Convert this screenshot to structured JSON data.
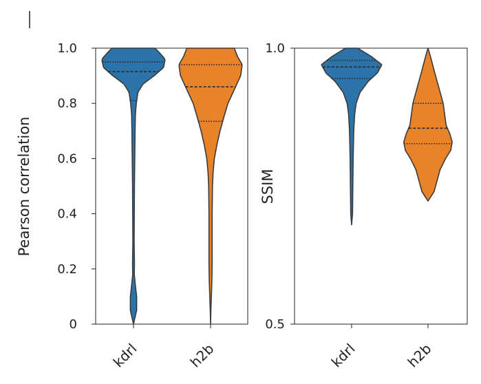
{
  "chart_data": [
    {
      "type": "violin",
      "ylabel": "Pearson correlation",
      "ylim": [
        0,
        1.0
      ],
      "yticks": [
        "1.0",
        "0.8",
        "0.6",
        "0.4",
        "0.2",
        "0"
      ],
      "ytick_values": [
        1.0,
        0.8,
        0.6,
        0.4,
        0.2,
        0
      ],
      "categories": [
        "kdrl",
        "h2b"
      ],
      "series": [
        {
          "color": "#2b73a8",
          "min": 0.0,
          "max": 1.0,
          "quartiles": [
            0.81,
            0.915,
            0.95
          ],
          "density_y": [
            0.0,
            0.05,
            0.1,
            0.14,
            0.18,
            0.22,
            0.3,
            0.5,
            0.7,
            0.76,
            0.8,
            0.84,
            0.87,
            0.9,
            0.93,
            0.96,
            0.98,
            1.0
          ],
          "density_w": [
            0.0,
            0.1,
            0.1,
            0.06,
            0.025,
            0.03,
            0.02,
            0.03,
            0.05,
            0.06,
            0.09,
            0.14,
            0.3,
            0.65,
            0.95,
            1.0,
            0.85,
            0.68
          ]
        },
        {
          "color": "#e8832a",
          "min": 0.0,
          "max": 1.0,
          "quartiles": [
            0.735,
            0.86,
            0.94
          ],
          "density_y": [
            0.0,
            0.05,
            0.15,
            0.22,
            0.3,
            0.4,
            0.5,
            0.55,
            0.6,
            0.65,
            0.7,
            0.75,
            0.8,
            0.85,
            0.9,
            0.94,
            0.97,
            1.0
          ],
          "density_w": [
            0.0,
            0.01,
            0.04,
            0.05,
            0.05,
            0.05,
            0.06,
            0.08,
            0.12,
            0.2,
            0.3,
            0.42,
            0.55,
            0.75,
            0.95,
            1.0,
            0.85,
            0.75
          ]
        }
      ]
    },
    {
      "type": "violin",
      "ylabel": "SSIM",
      "ylim": [
        0.5,
        1.0
      ],
      "yticks": [
        "1.0",
        "0.5"
      ],
      "ytick_values": [
        1.0,
        0.5
      ],
      "categories": [
        "kdrl",
        "h2b"
      ],
      "series": [
        {
          "color": "#2b73a8",
          "min": 0.68,
          "max": 1.0,
          "quartiles": [
            0.945,
            0.966,
            0.978
          ],
          "density_y": [
            0.68,
            0.7,
            0.75,
            0.8,
            0.85,
            0.88,
            0.9,
            0.92,
            0.94,
            0.955,
            0.97,
            0.985,
            1.0
          ],
          "density_w": [
            0.0,
            0.03,
            0.04,
            0.05,
            0.07,
            0.1,
            0.15,
            0.28,
            0.55,
            0.85,
            1.0,
            0.65,
            0.2
          ]
        },
        {
          "color": "#e8832a",
          "min": 0.723,
          "max": 1.0,
          "quartiles": [
            0.827,
            0.855,
            0.9
          ],
          "density_y": [
            0.723,
            0.74,
            0.76,
            0.78,
            0.8,
            0.815,
            0.83,
            0.845,
            0.86,
            0.88,
            0.9,
            0.93,
            0.96,
            0.985,
            1.0
          ],
          "density_w": [
            0.0,
            0.2,
            0.3,
            0.4,
            0.58,
            0.75,
            0.8,
            0.72,
            0.6,
            0.55,
            0.5,
            0.35,
            0.2,
            0.08,
            0.0
          ]
        }
      ]
    }
  ]
}
